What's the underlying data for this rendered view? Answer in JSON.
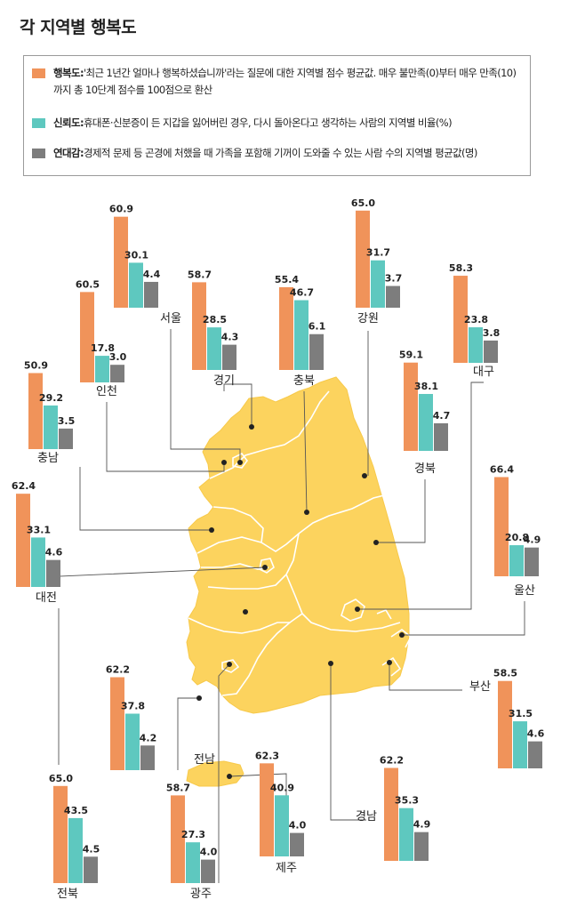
{
  "title": "각 지역별 행복도",
  "legend": [
    {
      "key": "행복도:",
      "text": "'최근 1년간 얼마나 행복하셨습니까'라는 질문에 대한 지역별 점수 평균값. 매우 불만족(0)부터 매우 만족(10)까지 총 10단계 점수를 100점으로 환산",
      "color": "#f0935a"
    },
    {
      "key": "신뢰도:",
      "text": "휴대폰·신분증이 든 지갑을 잃어버린 경우, 다시 돌아온다고 생각하는 사람의 지역별 비율(%)",
      "color": "#5ec8bf"
    },
    {
      "key": "연대감:",
      "text": "경제적 문제 등 곤경에 처했을 때 가족을 포함해 기꺼이 도와줄 수 있는 사람 수의 지역별 평균값(명)",
      "color": "#7d7d7d"
    }
  ],
  "colors": {
    "happiness": "#f0935a",
    "trust": "#5ec8bf",
    "solidarity": "#7d7d7d",
    "map_fill": "#fcd35e",
    "map_stroke": "#ffffff"
  },
  "chart_data": {
    "type": "bar",
    "title": "각 지역별 행복도",
    "series": [
      {
        "name": "행복도",
        "color": "#f0935a"
      },
      {
        "name": "신뢰도",
        "color": "#5ec8bf"
      },
      {
        "name": "연대감",
        "color": "#7d7d7d"
      }
    ],
    "categories": [
      "서울",
      "강원",
      "인천",
      "경기",
      "충북",
      "대구",
      "충남",
      "경북",
      "대전",
      "울산",
      "부산",
      "전남",
      "전북",
      "광주",
      "제주",
      "경남"
    ],
    "regions": [
      {
        "name": "서울",
        "values": [
          "60.9",
          "30.1",
          "4.4"
        ]
      },
      {
        "name": "강원",
        "values": [
          "65.0",
          "31.7",
          "3.7"
        ]
      },
      {
        "name": "인천",
        "values": [
          "60.5",
          "17.8",
          "3.0"
        ]
      },
      {
        "name": "경기",
        "values": [
          "58.7",
          "28.5",
          "4.3"
        ]
      },
      {
        "name": "충북",
        "values": [
          "55.4",
          "46.7",
          "6.1"
        ]
      },
      {
        "name": "대구",
        "values": [
          "58.3",
          "23.8",
          "3.8"
        ]
      },
      {
        "name": "충남",
        "values": [
          "50.9",
          "29.2",
          "3.5"
        ]
      },
      {
        "name": "경북",
        "values": [
          "59.1",
          "38.1",
          "4.7"
        ]
      },
      {
        "name": "대전",
        "values": [
          "62.4",
          "33.1",
          "4.6"
        ]
      },
      {
        "name": "울산",
        "values": [
          "66.4",
          "20.8",
          "4.9"
        ]
      },
      {
        "name": "부산",
        "values": [
          "58.5",
          "31.5",
          "4.6"
        ]
      },
      {
        "name": "전남",
        "values": [
          "62.2",
          "37.8",
          "4.2"
        ]
      },
      {
        "name": "전북",
        "values": [
          "65.0",
          "43.5",
          "4.5"
        ]
      },
      {
        "name": "광주",
        "values": [
          "58.7",
          "27.3",
          "4.0"
        ]
      },
      {
        "name": "제주",
        "values": [
          "62.3",
          "40.9",
          "4.0"
        ]
      },
      {
        "name": "경남",
        "values": [
          "62.2",
          "35.3",
          "4.9"
        ]
      }
    ]
  }
}
